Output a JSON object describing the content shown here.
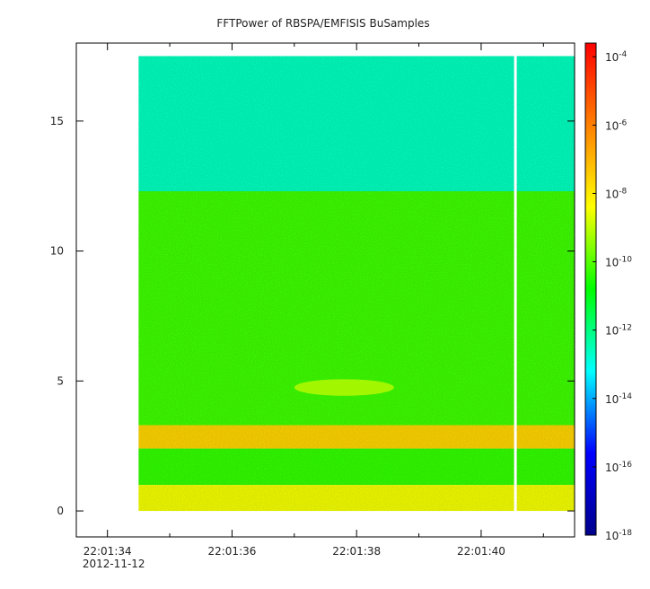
{
  "chart_data": {
    "type": "heatmap",
    "title": "FFTPower of RBSPA/EMFISIS  BuSamples",
    "xlabel": "",
    "ylabel": "",
    "x_ticks": [
      {
        "label": "22:01:34",
        "sublabel": "2012-11-12",
        "t": 0
      },
      {
        "label": "22:01:36",
        "t": 2
      },
      {
        "label": "22:01:38",
        "t": 4
      },
      {
        "label": "22:01:40",
        "t": 6
      }
    ],
    "x_minor_ticks_t": [
      1,
      3,
      5,
      7
    ],
    "xlim_seconds_after_22_01_34": [
      -0.5,
      7.5
    ],
    "ylim": [
      -1,
      18
    ],
    "y_ticks": [
      0,
      5,
      10,
      15
    ],
    "data_extent": {
      "t_start": 0.5,
      "t_end": 7.5,
      "f_min": 0,
      "f_max": 17.5
    },
    "gap": {
      "t": 6.55
    },
    "bands": [
      {
        "f_range": [
          12.3,
          17.5
        ],
        "log10_power": -12.6
      },
      {
        "f_range": [
          3.3,
          12.3
        ],
        "log10_power": -10.2
      },
      {
        "f_range": [
          2.4,
          3.3
        ],
        "log10_power": -7.6
      },
      {
        "f_range": [
          1.0,
          2.4
        ],
        "log10_power": -10.3
      },
      {
        "f_range": [
          0.0,
          1.0
        ],
        "log10_power": -8.5
      }
    ],
    "features": [
      {
        "t_range": [
          3.0,
          4.6
        ],
        "f_range": [
          4.5,
          5.0
        ],
        "log10_power": -8.6
      }
    ],
    "colorbar": {
      "scale": "log",
      "range_exp": [
        -18,
        -3.6
      ],
      "tick_exponents": [
        -4,
        -6,
        -8,
        -10,
        -12,
        -14,
        -16,
        -18
      ],
      "tick_base": "10",
      "colors": [
        "#00008b",
        "#0000ff",
        "#00ffff",
        "#00ff00",
        "#ffff00",
        "#ff8000",
        "#ff0000"
      ]
    }
  }
}
